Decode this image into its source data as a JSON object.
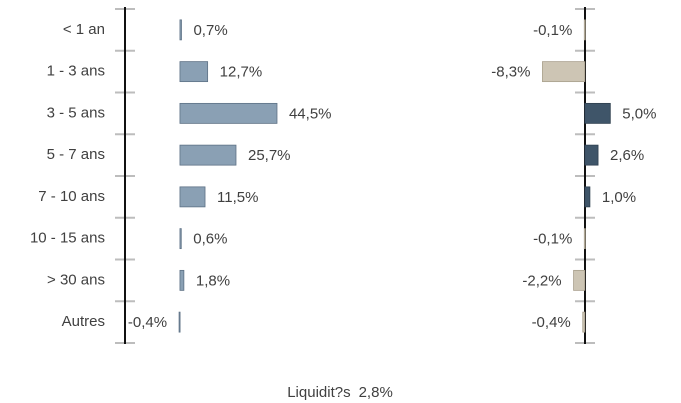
{
  "chart_data": [
    {
      "type": "hbar",
      "categories": [
        "< 1 an",
        "1 - 3 ans",
        "3 - 5 ans",
        "5 - 7 ans",
        "7 - 10 ans",
        "10 - 15 ans",
        "> 30 ans",
        "Autres"
      ],
      "values": [
        0.7,
        12.7,
        44.5,
        25.7,
        11.5,
        0.6,
        1.8,
        -0.4
      ],
      "value_labels": [
        "0,7%",
        "12,7%",
        "44,5%",
        "25,7%",
        "11,5%",
        "0,6%",
        "1,8%",
        "-0,4%"
      ],
      "color": "#8aa0b4",
      "xlim": [
        -25.2,
        100
      ]
    },
    {
      "type": "hbar",
      "values": [
        -0.1,
        -8.3,
        5.0,
        2.6,
        1.0,
        -0.1,
        -2.2,
        -0.4
      ],
      "value_labels": [
        "-0,1%",
        "-8,3%",
        "5,0%",
        "2,6%",
        "1,0%",
        "-0,1%",
        "-2,2%",
        "-0,4%"
      ],
      "color": "#3f5569",
      "negative_color": "#cdc5b4",
      "xlim": [
        -22.5,
        16.7
      ]
    }
  ],
  "footer": {
    "label": "Liquidit?s",
    "value": "2,8%"
  }
}
